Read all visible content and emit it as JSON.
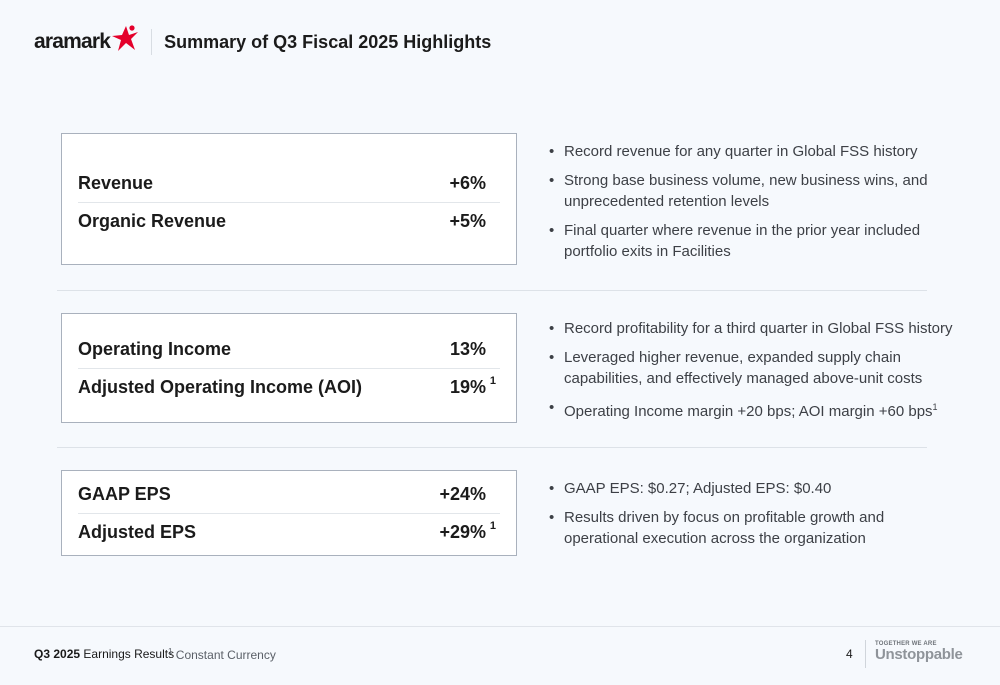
{
  "header": {
    "logo_text": "aramark",
    "title": "Summary of Q3 Fiscal 2025 Highlights"
  },
  "colors": {
    "brand_red": "#e4002b",
    "box_border": "#a9b1bd"
  },
  "sections": [
    {
      "metrics": [
        {
          "label": "Revenue",
          "value": "+6%",
          "sup": ""
        },
        {
          "label": "Organic Revenue",
          "value": "+5%",
          "sup": ""
        }
      ],
      "bullets": [
        {
          "text": "Record revenue for any quarter in Global FSS history",
          "sup": ""
        },
        {
          "text": "Strong base business volume, new business wins, and unprecedented retention levels",
          "sup": ""
        },
        {
          "text": "Final quarter where revenue in the prior year included portfolio exits in Facilities",
          "sup": ""
        }
      ]
    },
    {
      "metrics": [
        {
          "label": "Operating Income",
          "value": "13%",
          "sup": ""
        },
        {
          "label": "Adjusted Operating Income (AOI)",
          "value": "19%",
          "sup": "1"
        }
      ],
      "bullets": [
        {
          "text": "Record profitability for a third quarter in Global FSS history",
          "sup": ""
        },
        {
          "text": "Leveraged higher revenue, expanded supply chain capabilities, and effectively managed above-unit costs",
          "sup": ""
        },
        {
          "text": "Operating Income margin +20 bps; AOI margin +60 bps",
          "sup": "1"
        }
      ]
    },
    {
      "metrics": [
        {
          "label": "GAAP EPS",
          "value": "+24%",
          "sup": ""
        },
        {
          "label": "Adjusted EPS",
          "value": "+29%",
          "sup": "1"
        }
      ],
      "bullets": [
        {
          "text": "GAAP EPS: $0.27; Adjusted EPS: $0.40",
          "sup": ""
        },
        {
          "text": "Results driven by focus on profitable growth and operational execution across the organization",
          "sup": ""
        }
      ]
    }
  ],
  "footer": {
    "quarter": "Q3 2025",
    "label": "Earnings Results",
    "note_sup": "1",
    "note": "Constant Currency",
    "page_number": "4",
    "tagline_small": "TOGETHER WE ARE",
    "tagline_big": "Unstoppable"
  }
}
